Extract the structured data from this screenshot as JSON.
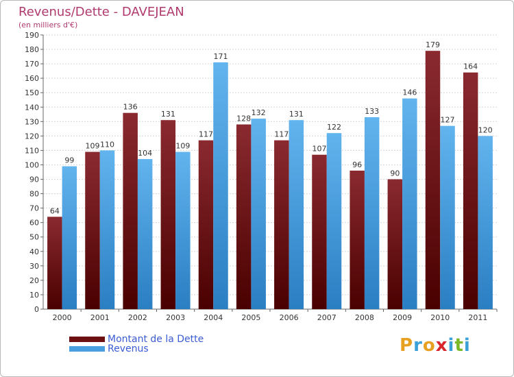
{
  "title": "Revenus/Dette - DAVEJEAN",
  "subtitle": "(en milliers d'€)",
  "colors": {
    "dette": "#7a1f24",
    "dette_dark": "#4a0000",
    "revenus": "#5aaee8",
    "revenus_dark": "#2a7ec2",
    "title": "#b03a6e",
    "legend_text": "#3b5bd6"
  },
  "legend": {
    "placement": "bottom-left",
    "items": [
      {
        "label": "Montant de la Dette",
        "color": "#6e0f12"
      },
      {
        "label": "Revenus",
        "color": "#4a9fe0"
      }
    ]
  },
  "logo": {
    "letters": [
      "P",
      "r",
      "o",
      "x",
      "i",
      "t",
      "i"
    ],
    "colors": [
      "#e8a020",
      "#3aa0d8",
      "#e8a020",
      "#d8262c",
      "#3aa0d8",
      "#7ab828",
      "#3aa0d8"
    ],
    "name": "proxiti-logo"
  },
  "chart_data": {
    "type": "bar",
    "title": "Revenus/Dette - DAVEJEAN",
    "subtitle": "(en milliers d'€)",
    "categories": [
      "2000",
      "2001",
      "2002",
      "2003",
      "2004",
      "2005",
      "2006",
      "2007",
      "2008",
      "2009",
      "2010",
      "2011"
    ],
    "series": [
      {
        "name": "Montant de la Dette",
        "values": [
          64,
          109,
          136,
          131,
          117,
          128,
          117,
          107,
          96,
          90,
          179,
          164
        ]
      },
      {
        "name": "Revenus",
        "values": [
          99,
          110,
          104,
          109,
          171,
          132,
          131,
          122,
          133,
          146,
          127,
          120
        ]
      }
    ],
    "ylim": [
      0,
      190
    ],
    "yticks": [
      0,
      10,
      20,
      30,
      40,
      50,
      60,
      70,
      80,
      90,
      100,
      110,
      120,
      130,
      140,
      150,
      160,
      170,
      180,
      190
    ],
    "grid": true,
    "xlabel": "",
    "ylabel": ""
  }
}
